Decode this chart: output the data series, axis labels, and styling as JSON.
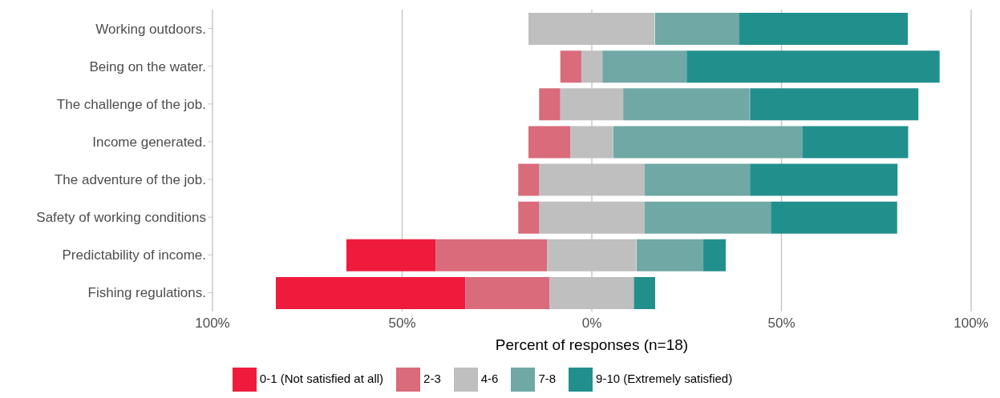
{
  "chart_data": {
    "type": "bar",
    "orientation": "horizontal",
    "xlabel": "Percent of responses (n=18)",
    "categories": [
      "Working outdoors.",
      "Being on the water.",
      "The challenge of the job.",
      "Income generated.",
      "The adventure of the job.",
      "Safety of working conditions",
      "Predictability of income.",
      "Fishing regulations."
    ],
    "series": [
      {
        "name": "0-1 (Not satisfied at all)",
        "color": "#ef1b3c",
        "values": [
          null,
          null,
          null,
          null,
          null,
          null,
          23.5,
          50
        ],
        "base": [
          null,
          null,
          null,
          null,
          null,
          null,
          -64.7,
          -83.3
        ]
      },
      {
        "name": "2-3",
        "color": "#d96b7b",
        "values": [
          null,
          5.6,
          5.6,
          11.1,
          5.6,
          5.6,
          29.4,
          22.2
        ],
        "base": [
          null,
          -8.3,
          -13.9,
          -16.7,
          -19.4,
          -19.4,
          -41.2,
          -33.3
        ]
      },
      {
        "name": "4-6",
        "color": "#bfbfbf",
        "values": [
          33.3,
          5.6,
          16.7,
          11.1,
          27.8,
          27.8,
          23.5,
          22.2
        ],
        "base": [
          -16.7,
          -2.8,
          -8.3,
          -5.6,
          -13.9,
          -13.9,
          -11.8,
          -11.1
        ]
      },
      {
        "name": "7-8",
        "color": "#6fa8a4",
        "values": [
          22.2,
          22.2,
          33.3,
          50,
          27.8,
          33.3,
          17.6,
          null
        ],
        "base": [
          16.7,
          2.8,
          8.3,
          5.6,
          13.9,
          13.9,
          11.8,
          null
        ]
      },
      {
        "name": "9-10 (Extremely satisfied)",
        "color": "#21908d",
        "values": [
          44.4,
          66.7,
          44.4,
          27.8,
          38.9,
          33.3,
          5.9,
          5.6
        ],
        "base": [
          38.9,
          25,
          41.7,
          55.6,
          41.7,
          47.2,
          29.4,
          11.1
        ]
      }
    ],
    "xlim": [
      -100,
      100
    ],
    "xticks": [
      {
        "value": -100,
        "label": "100%"
      },
      {
        "value": -50,
        "label": "50%"
      },
      {
        "value": 0,
        "label": "0%"
      },
      {
        "value": 50,
        "label": "50%"
      },
      {
        "value": 100,
        "label": "100%"
      }
    ],
    "grid": "x",
    "legend": "bottom"
  }
}
